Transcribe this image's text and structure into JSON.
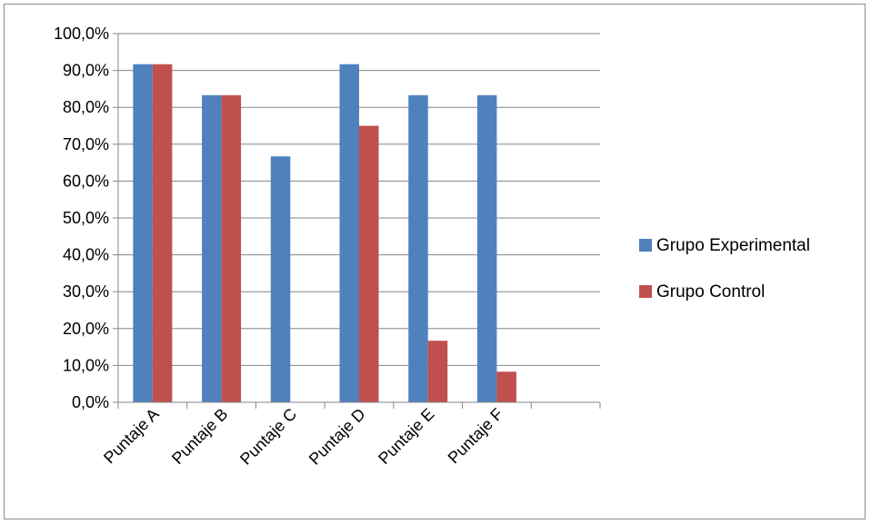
{
  "chart_data": {
    "type": "bar",
    "title": "",
    "xlabel": "",
    "ylabel": "",
    "categories": [
      "Puntaje A",
      "Puntaje B",
      "Puntaje C",
      "Puntaje D",
      "Puntaje E",
      "Puntaje F"
    ],
    "series": [
      {
        "name": "Grupo Experimental",
        "color": "#4f81bd",
        "values": [
          91.7,
          83.3,
          66.7,
          91.7,
          83.3,
          83.3
        ]
      },
      {
        "name": "Grupo Control",
        "color": "#c0504d",
        "values": [
          91.7,
          83.3,
          0,
          75.0,
          16.7,
          8.3
        ]
      }
    ],
    "extra_empty_categories": 1,
    "ylim": [
      0,
      100
    ],
    "y_ticks": [
      "0,0%",
      "10,0%",
      "20,0%",
      "30,0%",
      "40,0%",
      "50,0%",
      "60,0%",
      "70,0%",
      "80,0%",
      "90,0%",
      "100,0%"
    ],
    "grid": true,
    "legend_position": "right"
  }
}
